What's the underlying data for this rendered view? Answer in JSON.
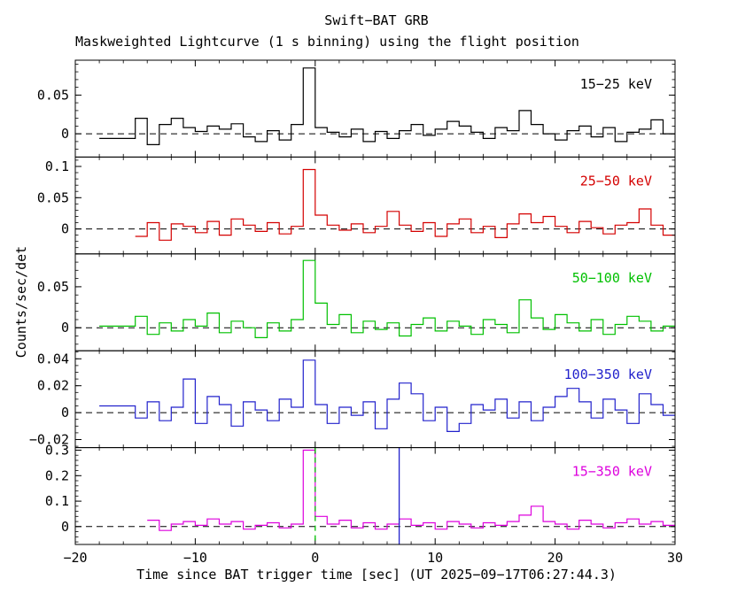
{
  "header": {
    "title": "Swift−BAT GRB",
    "subtitle": "Maskweighted Lightcurve (1 s binning) using the flight position"
  },
  "axes": {
    "xlabel": "Time since BAT trigger time [sec] (UT 2025−09−17T06:27:44.3)",
    "ylabel": "Counts/sec/det"
  },
  "chart_data": {
    "type": "line",
    "style": "step-histogram-stacked-panels",
    "x_axis": {
      "min": -20,
      "max": 30,
      "major_ticks": [
        -20,
        -10,
        0,
        10,
        20,
        30
      ],
      "minor_step": 2,
      "bin_width": 1
    },
    "zero_line": {
      "style": "dashed",
      "color": "#000000"
    },
    "panels": [
      {
        "label": "15−25 keV",
        "color": "#000000",
        "ylim": [
          -0.03,
          0.095
        ],
        "yticks": [
          0,
          0.05
        ],
        "yminor": 0.01,
        "t_start": -18,
        "values": [
          -0.006,
          -0.006,
          -0.006,
          0.02,
          -0.014,
          0.012,
          0.02,
          0.008,
          0.003,
          0.01,
          0.006,
          0.013,
          -0.004,
          -0.01,
          0.004,
          -0.008,
          0.012,
          0.085,
          0.008,
          0.002,
          -0.004,
          0.006,
          -0.01,
          0.003,
          -0.006,
          0.004,
          0.012,
          -0.002,
          0.006,
          0.016,
          0.01,
          0.002,
          -0.006,
          0.008,
          0.004,
          0.03,
          0.012,
          0.0,
          -0.008,
          0.004,
          0.01,
          -0.004,
          0.008,
          -0.01,
          0.002,
          0.006,
          0.018,
          0.0
        ]
      },
      {
        "label": "25−50 keV",
        "color": "#d40000",
        "ylim": [
          -0.04,
          0.115
        ],
        "yticks": [
          0,
          0.05,
          0.1
        ],
        "yminor": 0.01,
        "t_start": -15,
        "values": [
          -0.012,
          0.01,
          -0.018,
          0.008,
          0.004,
          -0.006,
          0.012,
          -0.01,
          0.016,
          0.006,
          -0.004,
          0.01,
          -0.008,
          0.004,
          0.095,
          0.022,
          0.006,
          -0.002,
          0.008,
          -0.006,
          0.004,
          0.028,
          0.006,
          -0.004,
          0.01,
          -0.012,
          0.008,
          0.016,
          -0.006,
          0.004,
          -0.014,
          0.008,
          0.024,
          0.01,
          0.02,
          0.004,
          -0.006,
          0.012,
          0.002,
          -0.008,
          0.006,
          0.01,
          0.032,
          0.006,
          -0.01
        ]
      },
      {
        "label": "50−100 keV",
        "color": "#00c000",
        "ylim": [
          -0.028,
          0.09
        ],
        "yticks": [
          0,
          0.05
        ],
        "yminor": 0.01,
        "t_start": -18,
        "values": [
          0.002,
          0.002,
          0.002,
          0.014,
          -0.008,
          0.006,
          -0.004,
          0.01,
          0.002,
          0.018,
          -0.006,
          0.008,
          0.0,
          -0.012,
          0.006,
          -0.004,
          0.01,
          0.082,
          0.03,
          0.004,
          0.016,
          -0.006,
          0.008,
          -0.002,
          0.006,
          -0.01,
          0.004,
          0.012,
          -0.004,
          0.008,
          0.002,
          -0.008,
          0.01,
          0.004,
          -0.006,
          0.034,
          0.012,
          -0.002,
          0.016,
          0.006,
          -0.004,
          0.01,
          -0.008,
          0.004,
          0.014,
          0.008,
          -0.004,
          0.002
        ]
      },
      {
        "label": "100−350 keV",
        "color": "#2222cc",
        "ylim": [
          -0.026,
          0.046
        ],
        "yticks": [
          -0.02,
          0,
          0.02,
          0.04
        ],
        "yminor": 0.005,
        "t_start": -18,
        "values": [
          0.005,
          0.005,
          0.005,
          -0.004,
          0.008,
          -0.006,
          0.004,
          0.025,
          -0.008,
          0.012,
          0.006,
          -0.01,
          0.008,
          0.002,
          -0.006,
          0.01,
          0.004,
          0.039,
          0.006,
          -0.008,
          0.004,
          -0.002,
          0.008,
          -0.012,
          0.01,
          0.022,
          0.014,
          -0.006,
          0.004,
          -0.014,
          -0.008,
          0.006,
          0.002,
          0.01,
          -0.004,
          0.008,
          -0.006,
          0.004,
          0.012,
          0.018,
          0.008,
          -0.004,
          0.01,
          0.002,
          -0.008,
          0.014,
          0.006,
          -0.002
        ]
      },
      {
        "label": "15−350 keV",
        "color": "#dd00dd",
        "ylim": [
          -0.07,
          0.31
        ],
        "yticks": [
          0,
          0.1,
          0.2,
          0.3
        ],
        "yminor": 0.02,
        "t_start": -14,
        "values": [
          0.025,
          -0.015,
          0.01,
          0.02,
          0.005,
          0.03,
          0.01,
          0.02,
          -0.01,
          0.005,
          0.015,
          -0.005,
          0.01,
          0.3,
          0.04,
          0.01,
          0.025,
          -0.005,
          0.015,
          -0.01,
          0.01,
          0.03,
          0.005,
          0.015,
          -0.01,
          0.02,
          0.01,
          -0.005,
          0.015,
          0.005,
          0.02,
          0.045,
          0.08,
          0.02,
          0.01,
          -0.01,
          0.025,
          0.01,
          -0.005,
          0.015,
          0.03,
          0.01,
          0.02,
          0.005
        ]
      }
    ],
    "event_lines": [
      {
        "panel": 4,
        "x": 0,
        "style": "dashed",
        "color": "#00c000"
      },
      {
        "panel": 4,
        "x": 7,
        "style": "solid",
        "color": "#2222cc"
      }
    ]
  }
}
